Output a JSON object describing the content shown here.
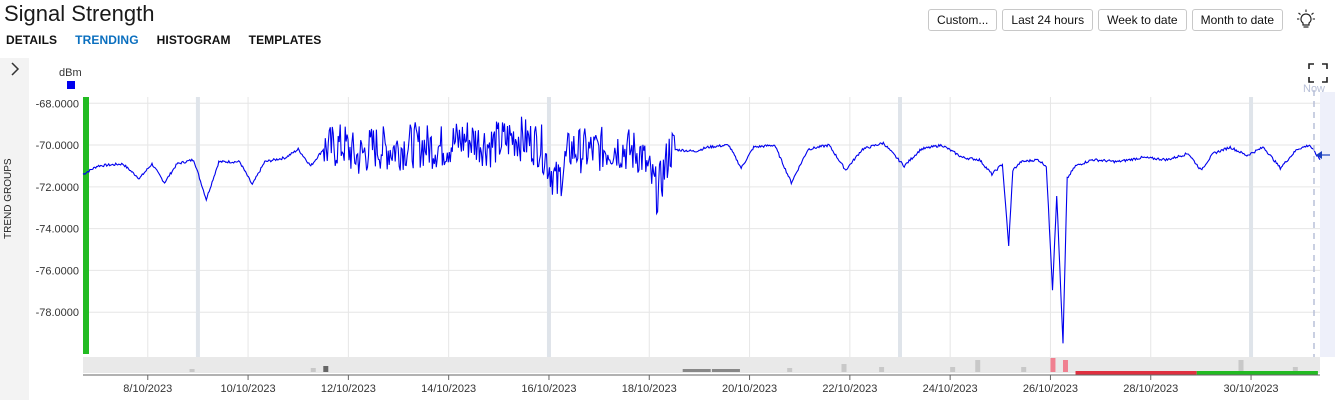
{
  "header": {
    "title": "Signal Strength",
    "tabs": [
      {
        "label": "DETAILS",
        "active": false
      },
      {
        "label": "TRENDING",
        "active": true
      },
      {
        "label": "HISTOGRAM",
        "active": false
      },
      {
        "label": "TEMPLATES",
        "active": false
      }
    ],
    "range_buttons": [
      "Custom...",
      "Last 24 hours",
      "Week to date",
      "Month to date"
    ],
    "bulb_icon": "lightbulb-icon"
  },
  "sidebar": {
    "label": "TREND GROUPS",
    "toggle_icon": "chevron-right-icon"
  },
  "chart_header": {
    "unit": "dBm",
    "series_color": "#0000ee",
    "expand_icon": "fullscreen-icon",
    "now_label": "Now"
  },
  "colors": {
    "accent": "#0a6fbf",
    "series": "#0000ee",
    "status_good": "#22bb22",
    "status_bad": "#e03040"
  },
  "chart_data": {
    "type": "line",
    "title": "Signal Strength",
    "ylabel": "dBm",
    "xlabel": "",
    "ylim": [
      -80,
      -67.7
    ],
    "xlim": [
      "2023-10-06T17:00",
      "2023-10-31T09:00"
    ],
    "y_ticks": [
      "-68.0000",
      "-70.0000",
      "-72.0000",
      "-74.0000",
      "-76.0000",
      "-78.0000"
    ],
    "x_ticks": [
      "8/10/2023",
      "10/10/2023",
      "12/10/2023",
      "14/10/2023",
      "16/10/2023",
      "18/10/2023",
      "20/10/2023",
      "22/10/2023",
      "24/10/2023",
      "26/10/2023",
      "28/10/2023",
      "30/10/2023"
    ],
    "grid": true,
    "series": [
      {
        "color": "#0000ee",
        "points": [
          [
            "2023-10-06T17:00",
            -71.4
          ],
          [
            "2023-10-07T00:00",
            -71.0
          ],
          [
            "2023-10-07T12:00",
            -70.9
          ],
          [
            "2023-10-07T20:00",
            -71.6
          ],
          [
            "2023-10-08T02:00",
            -70.9
          ],
          [
            "2023-10-08T08:00",
            -71.8
          ],
          [
            "2023-10-08T14:00",
            -70.9
          ],
          [
            "2023-10-08T22:00",
            -70.7
          ],
          [
            "2023-10-09T04:00",
            -72.6
          ],
          [
            "2023-10-09T10:00",
            -70.8
          ],
          [
            "2023-10-09T20:00",
            -70.8
          ],
          [
            "2023-10-10T02:00",
            -71.9
          ],
          [
            "2023-10-10T08:00",
            -70.8
          ],
          [
            "2023-10-10T18:00",
            -70.6
          ],
          [
            "2023-10-11T00:00",
            -70.2
          ],
          [
            "2023-10-11T06:00",
            -71.0
          ],
          [
            "2023-10-11T12:00",
            -70.2
          ],
          [
            "2023-10-11T22:00",
            -70.0
          ],
          [
            "2023-10-12T04:00",
            -70.6
          ],
          [
            "2023-10-12T12:00",
            -70.1
          ],
          [
            "2023-10-12T20:00",
            -70.2
          ],
          [
            "2023-10-13T08:00",
            -70.0
          ],
          [
            "2023-10-13T20:00",
            -70.1
          ],
          [
            "2023-10-14T08:00",
            -69.7
          ],
          [
            "2023-10-14T20:00",
            -70.0
          ],
          [
            "2023-10-15T08:00",
            -69.6
          ],
          [
            "2023-10-15T20:00",
            -70.0
          ],
          [
            "2023-10-16T04:00",
            -71.9
          ],
          [
            "2023-10-16T10:00",
            -70.2
          ],
          [
            "2023-10-16T20:00",
            -70.3
          ],
          [
            "2023-10-17T08:00",
            -70.1
          ],
          [
            "2023-10-17T20:00",
            -70.4
          ],
          [
            "2023-10-18T04:00",
            -72.3
          ],
          [
            "2023-10-18T10:00",
            -70.2
          ],
          [
            "2023-10-18T22:00",
            -70.3
          ],
          [
            "2023-10-19T04:00",
            -70.1
          ],
          [
            "2023-10-19T14:00",
            -70.0
          ],
          [
            "2023-10-19T20:00",
            -71.1
          ],
          [
            "2023-10-20T02:00",
            -70.1
          ],
          [
            "2023-10-20T12:00",
            -70.0
          ],
          [
            "2023-10-20T20:00",
            -71.8
          ],
          [
            "2023-10-21T04:00",
            -70.2
          ],
          [
            "2023-10-21T14:00",
            -70.0
          ],
          [
            "2023-10-21T22:00",
            -71.2
          ],
          [
            "2023-10-22T06:00",
            -70.2
          ],
          [
            "2023-10-22T16:00",
            -69.9
          ],
          [
            "2023-10-23T02:00",
            -71.0
          ],
          [
            "2023-10-23T10:00",
            -70.2
          ],
          [
            "2023-10-23T20:00",
            -70.0
          ],
          [
            "2023-10-24T06:00",
            -70.6
          ],
          [
            "2023-10-24T14:00",
            -70.7
          ],
          [
            "2023-10-24T20:00",
            -71.4
          ],
          [
            "2023-10-25T01:00",
            -70.9
          ],
          [
            "2023-10-25T04:00",
            -74.8
          ],
          [
            "2023-10-25T06:00",
            -71.2
          ],
          [
            "2023-10-25T10:00",
            -70.8
          ],
          [
            "2023-10-25T18:00",
            -70.7
          ],
          [
            "2023-10-25T22:00",
            -71.0
          ],
          [
            "2023-10-26T01:00",
            -76.9
          ],
          [
            "2023-10-26T03:00",
            -72.4
          ],
          [
            "2023-10-26T06:00",
            -79.5
          ],
          [
            "2023-10-26T08:00",
            -71.6
          ],
          [
            "2023-10-26T12:00",
            -71.0
          ],
          [
            "2023-10-26T20:00",
            -70.7
          ],
          [
            "2023-10-27T08:00",
            -70.8
          ],
          [
            "2023-10-27T20:00",
            -70.6
          ],
          [
            "2023-10-28T08:00",
            -70.7
          ],
          [
            "2023-10-28T18:00",
            -70.4
          ],
          [
            "2023-10-29T00:00",
            -71.2
          ],
          [
            "2023-10-29T06:00",
            -70.4
          ],
          [
            "2023-10-29T14:00",
            -70.1
          ],
          [
            "2023-10-29T22:00",
            -70.5
          ],
          [
            "2023-10-30T06:00",
            -70.1
          ],
          [
            "2023-10-30T14:00",
            -71.1
          ],
          [
            "2023-10-30T22:00",
            -70.2
          ],
          [
            "2023-10-31T04:00",
            -70.0
          ],
          [
            "2023-10-31T09:00",
            -70.7
          ]
        ]
      }
    ],
    "status_bar": [
      {
        "from": "2023-10-26T12:00",
        "to": "2023-10-28T22:00",
        "color": "#e03040"
      },
      {
        "from": "2023-10-28T22:00",
        "to": "2023-10-31T08:00",
        "color": "#22bb22"
      }
    ]
  }
}
